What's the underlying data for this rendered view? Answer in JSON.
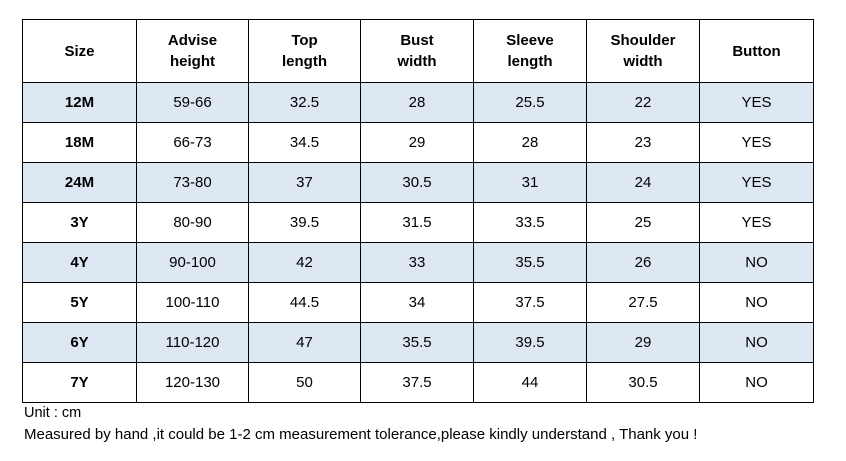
{
  "table": {
    "headers": [
      {
        "line1": "Size",
        "line2": ""
      },
      {
        "line1": "Advise",
        "line2": "height"
      },
      {
        "line1": "Top",
        "line2": "length"
      },
      {
        "line1": "Bust",
        "line2": "width"
      },
      {
        "line1": "Sleeve",
        "line2": "length"
      },
      {
        "line1": "Shoulder",
        "line2": "width"
      },
      {
        "line1": "Button",
        "line2": ""
      }
    ],
    "rows": [
      [
        "12M",
        "59-66",
        "32.5",
        "28",
        "25.5",
        "22",
        "YES"
      ],
      [
        "18M",
        "66-73",
        "34.5",
        "29",
        "28",
        "23",
        "YES"
      ],
      [
        "24M",
        "73-80",
        "37",
        "30.5",
        "31",
        "24",
        "YES"
      ],
      [
        "3Y",
        "80-90",
        "39.5",
        "31.5",
        "33.5",
        "25",
        "YES"
      ],
      [
        "4Y",
        "90-100",
        "42",
        "33",
        "35.5",
        "26",
        "NO"
      ],
      [
        "5Y",
        "100-110",
        "44.5",
        "34",
        "37.5",
        "27.5",
        "NO"
      ],
      [
        "6Y",
        "110-120",
        "47",
        "35.5",
        "39.5",
        "29",
        "NO"
      ],
      [
        "7Y",
        "120-130",
        "50",
        "37.5",
        "44",
        "30.5",
        "NO"
      ]
    ]
  },
  "notes": {
    "unit": "Unit : cm",
    "tolerance": "Measured by hand ,it could be 1-2 cm measurement tolerance,please kindly understand , Thank you !"
  },
  "colors": {
    "shaded_row": "#dde8f3",
    "border": "#000000"
  }
}
